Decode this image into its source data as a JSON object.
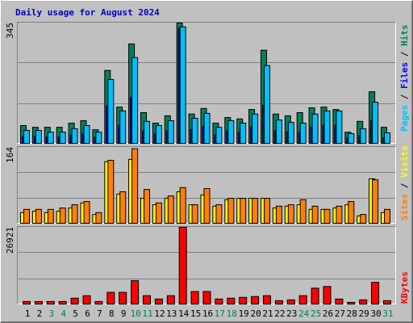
{
  "chart_data": [
    {
      "type": "bar",
      "title": "Daily usage for August 2024",
      "title_color": "#0000c0",
      "ylim": [
        0,
        345
      ],
      "yticks": [
        345
      ],
      "grid_divisions": 3,
      "legend_separator": " / ",
      "series": [
        {
          "name": "Hits",
          "color": "#00805c",
          "values": [
            51,
            46,
            46,
            46,
            58,
            65,
            39,
            209,
            104,
            285,
            88,
            58,
            79,
            345,
            84,
            100,
            58,
            74,
            70,
            97,
            267,
            84,
            79,
            88,
            102,
            104,
            97,
            32,
            63,
            148,
            46
          ]
        },
        {
          "name": "Files",
          "color": "#0000ff",
          "values": [
            20,
            20,
            18,
            18,
            24,
            28,
            18,
            107,
            52,
            132,
            35,
            28,
            36,
            330,
            40,
            48,
            25,
            36,
            32,
            47,
            109,
            37,
            33,
            32,
            47,
            52,
            52,
            15,
            23,
            66,
            16
          ]
        },
        {
          "name": "Pages",
          "color": "#00c0ff",
          "values": [
            37,
            37,
            32,
            32,
            42,
            51,
            32,
            183,
            93,
            246,
            63,
            51,
            65,
            334,
            72,
            86,
            46,
            65,
            58,
            84,
            223,
            67,
            60,
            58,
            84,
            93,
            93,
            28,
            42,
            118,
            30
          ]
        }
      ]
    },
    {
      "type": "bar",
      "ylim": [
        0,
        164
      ],
      "yticks": [
        164
      ],
      "grid_divisions": 3,
      "legend_separator": " / ",
      "series": [
        {
          "name": "Visits",
          "color": "#ffff00",
          "values": [
            23,
            26,
            23,
            26,
            33,
            44,
            19,
            133,
            63,
            138,
            54,
            40,
            54,
            68,
            40,
            61,
            37,
            51,
            54,
            54,
            54,
            33,
            37,
            40,
            30,
            30,
            33,
            40,
            16,
            96,
            23
          ]
        },
        {
          "name": "Sites",
          "color": "#ff8000",
          "values": [
            30,
            30,
            30,
            33,
            40,
            47,
            23,
            136,
            68,
            161,
            73,
            44,
            59,
            77,
            40,
            75,
            40,
            54,
            54,
            54,
            54,
            37,
            40,
            51,
            37,
            30,
            37,
            47,
            19,
            94,
            30
          ]
        }
      ]
    },
    {
      "type": "bar",
      "ylim": [
        0,
        26921
      ],
      "yticks": [
        26921
      ],
      "grid_divisions": 3,
      "categories": [
        "1",
        "2",
        "3",
        "4",
        "5",
        "6",
        "7",
        "8",
        "9",
        "10",
        "11",
        "12",
        "13",
        "14",
        "15",
        "16",
        "17",
        "18",
        "19",
        "20",
        "21",
        "22",
        "23",
        "24",
        "25",
        "26",
        "27",
        "28",
        "29",
        "30",
        "31"
      ],
      "highlight": [
        2,
        3,
        9,
        10,
        16,
        17,
        23,
        24,
        30
      ],
      "highlight_color": "#00805c",
      "series": [
        {
          "name": "KBytes",
          "color": "#ff0000",
          "values": [
            880,
            880,
            880,
            880,
            2050,
            2930,
            880,
            4100,
            4100,
            8200,
            2930,
            1760,
            2930,
            26921,
            4390,
            4390,
            1760,
            2050,
            2340,
            2630,
            2930,
            1170,
            1460,
            2930,
            5560,
            6150,
            1760,
            590,
            1460,
            7610,
            1170
          ]
        }
      ]
    }
  ]
}
